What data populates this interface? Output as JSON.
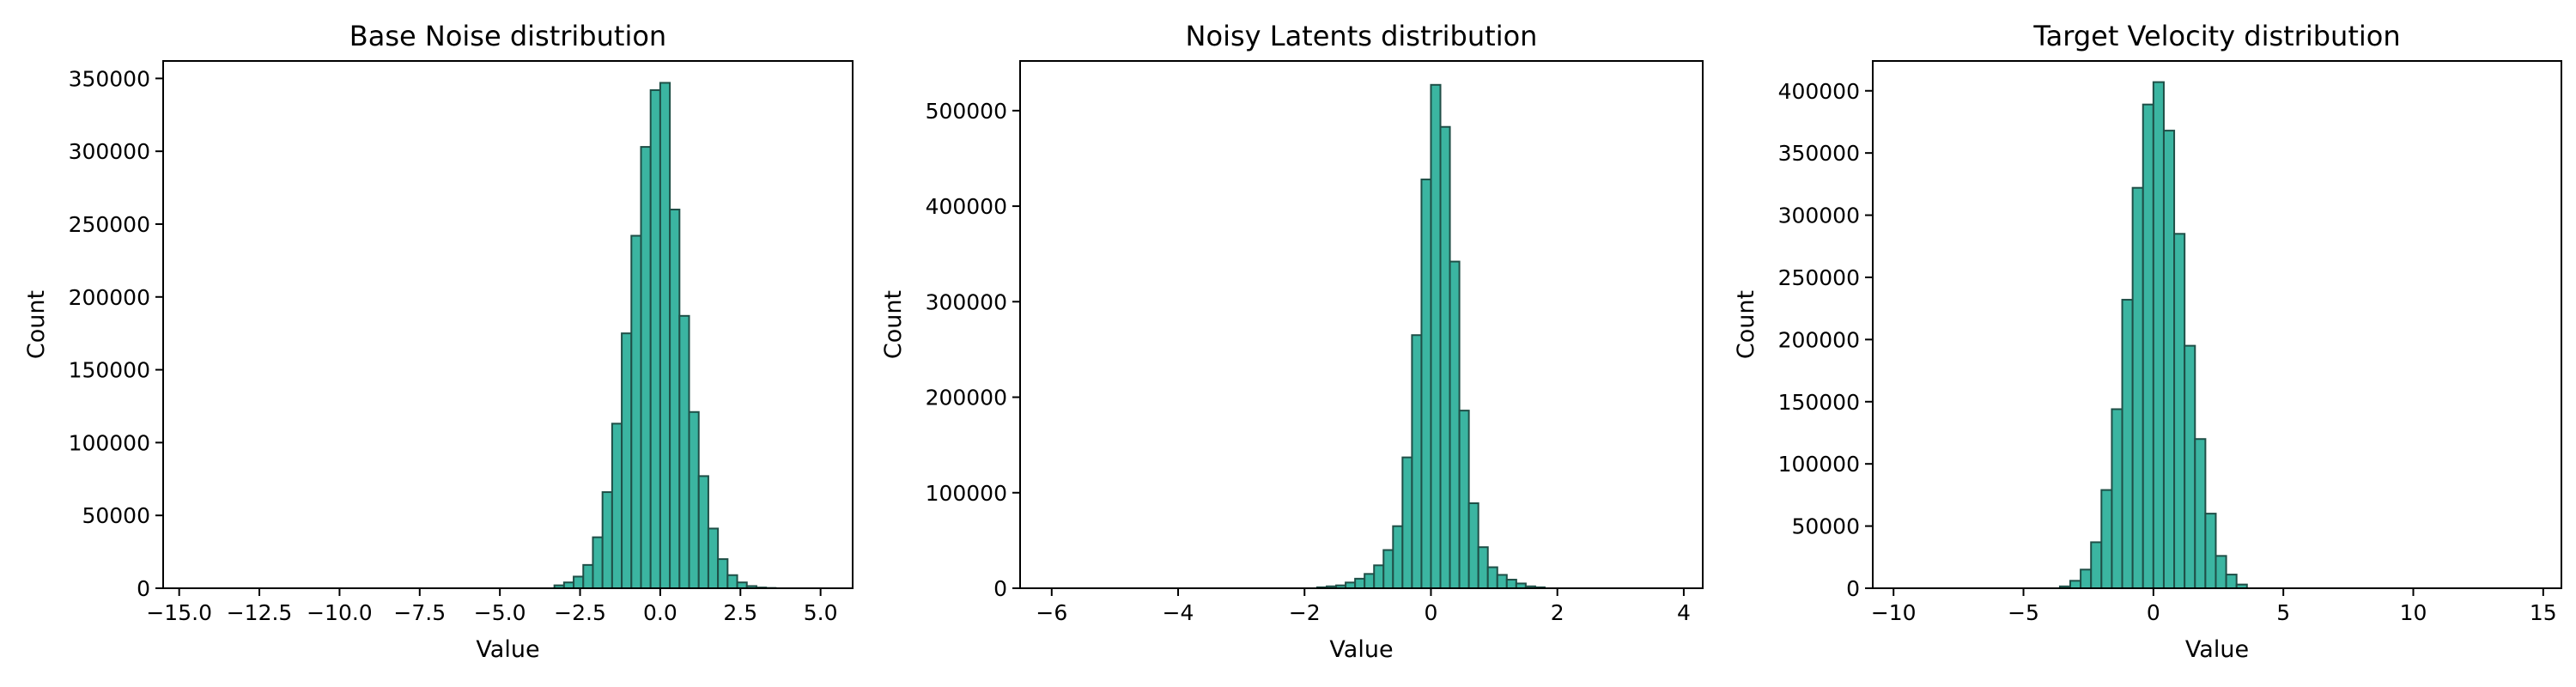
{
  "chart_data": [
    {
      "type": "bar",
      "title": "Base Noise distribution",
      "xlabel": "Value",
      "ylabel": "Count",
      "xlim": [
        -15.5,
        6.0
      ],
      "ylim": [
        0,
        362000
      ],
      "xticks": [
        -15.0,
        -12.5,
        -10.0,
        -7.5,
        -5.0,
        -2.5,
        0.0,
        2.5,
        5.0
      ],
      "xtick_labels": [
        "−15.0",
        "−12.5",
        "−10.0",
        "−7.5",
        "−5.0",
        "−2.5",
        "0.0",
        "2.5",
        "5.0"
      ],
      "yticks": [
        0,
        50000,
        100000,
        150000,
        200000,
        250000,
        300000,
        350000
      ],
      "ytick_labels": [
        "0",
        "50000",
        "100000",
        "150000",
        "200000",
        "250000",
        "300000",
        "350000"
      ],
      "bin_width": 0.3,
      "bins_start": [
        -3.3,
        -3.0,
        -2.7,
        -2.4,
        -2.1,
        -1.8,
        -1.5,
        -1.2,
        -0.9,
        -0.6,
        -0.3,
        0.0,
        0.3,
        0.6,
        0.9,
        1.2,
        1.5,
        1.8,
        2.1,
        2.4,
        2.7,
        3.0,
        3.3
      ],
      "values": [
        2000,
        4000,
        8000,
        16000,
        35000,
        66000,
        113000,
        175000,
        242000,
        303000,
        342000,
        347000,
        260000,
        187000,
        121000,
        77000,
        41000,
        20000,
        9000,
        4000,
        1500,
        500,
        200
      ]
    },
    {
      "type": "bar",
      "title": "Noisy Latents distribution",
      "xlabel": "Value",
      "ylabel": "Count",
      "xlim": [
        -6.5,
        4.3
      ],
      "ylim": [
        0,
        552000
      ],
      "xticks": [
        -6,
        -4,
        -2,
        0,
        2,
        4
      ],
      "xtick_labels": [
        "−6",
        "−4",
        "−2",
        "0",
        "2",
        "4"
      ],
      "yticks": [
        0,
        100000,
        200000,
        300000,
        400000,
        500000
      ],
      "ytick_labels": [
        "0",
        "100000",
        "200000",
        "300000",
        "400000",
        "500000"
      ],
      "bin_width": 0.15,
      "bins_start": [
        -1.8,
        -1.65,
        -1.5,
        -1.35,
        -1.2,
        -1.05,
        -0.9,
        -0.75,
        -0.6,
        -0.45,
        -0.3,
        -0.15,
        0.0,
        0.15,
        0.3,
        0.45,
        0.6,
        0.75,
        0.9,
        1.05,
        1.2,
        1.35,
        1.5,
        1.65
      ],
      "values": [
        1000,
        2000,
        3000,
        6000,
        10000,
        15000,
        24000,
        40000,
        65000,
        137000,
        265000,
        428000,
        527000,
        483000,
        342000,
        186000,
        89000,
        43000,
        22000,
        14000,
        9000,
        5000,
        2000,
        1000
      ]
    },
    {
      "type": "bar",
      "title": "Target Velocity distribution",
      "xlabel": "Value",
      "ylabel": "Count",
      "xlim": [
        -10.8,
        15.7
      ],
      "ylim": [
        0,
        424000
      ],
      "xticks": [
        -10,
        -5,
        0,
        5,
        10,
        15
      ],
      "xtick_labels": [
        "−10",
        "−5",
        "0",
        "5",
        "10",
        "15"
      ],
      "yticks": [
        0,
        50000,
        100000,
        150000,
        200000,
        250000,
        300000,
        350000,
        400000
      ],
      "ytick_labels": [
        "0",
        "50000",
        "100000",
        "150000",
        "200000",
        "250000",
        "300000",
        "350000",
        "400000"
      ],
      "bin_width": 0.4,
      "bins_start": [
        -3.6,
        -3.2,
        -2.8,
        -2.4,
        -2.0,
        -1.6,
        -1.2,
        -0.8,
        -0.4,
        0.0,
        0.4,
        0.8,
        1.2,
        1.6,
        2.0,
        2.4,
        2.8,
        3.2
      ],
      "values": [
        1500,
        6000,
        15000,
        37000,
        79000,
        144000,
        232000,
        322000,
        389000,
        407000,
        368000,
        285000,
        195000,
        120000,
        60000,
        26000,
        11000,
        3000
      ]
    }
  ],
  "colors": {
    "bar_fill": "#3bb5a1",
    "bar_edge": "#1f4f47",
    "axis": "#000000"
  }
}
